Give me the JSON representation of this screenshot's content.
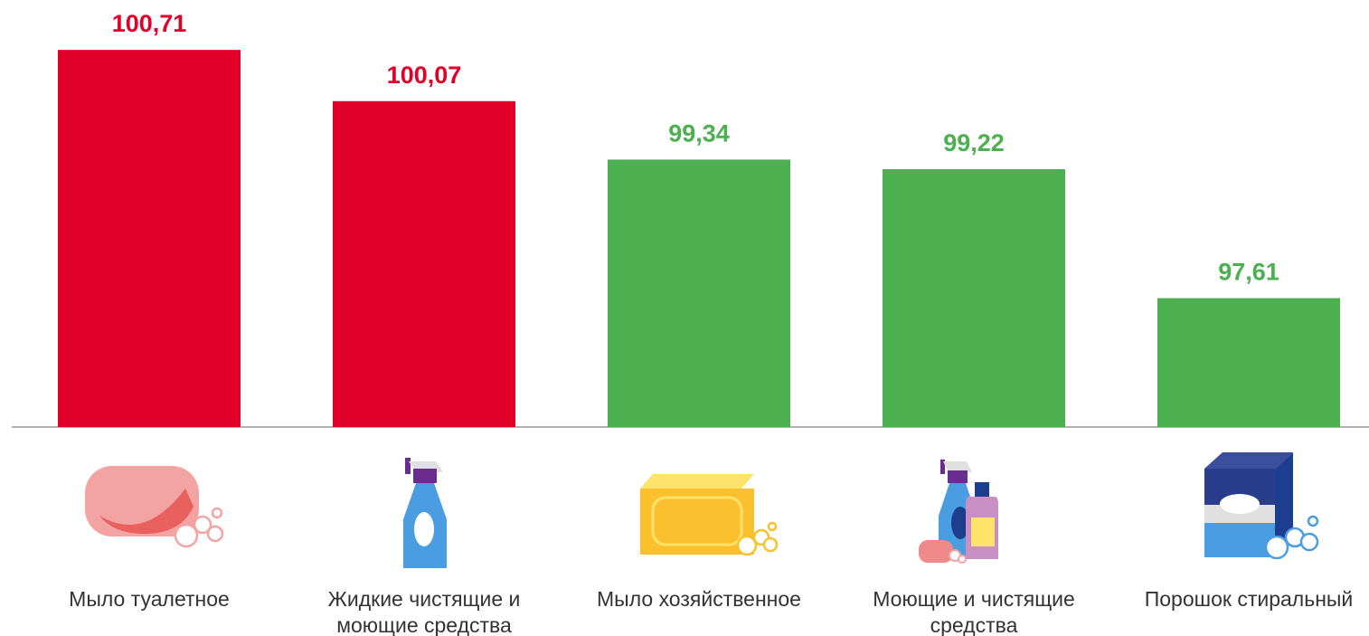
{
  "chart_data": {
    "type": "bar",
    "categories": [
      "Мыло туалетное",
      "Жидкие чистящие и моющие средства",
      "Мыло хозяйственное",
      "Моющие и чистящие средства",
      "Порошок стиральный"
    ],
    "values": [
      100.71,
      100.07,
      99.34,
      99.22,
      97.61
    ],
    "value_labels": [
      "100,71",
      "100,07",
      "99,34",
      "99,22",
      "97,61"
    ],
    "colors": [
      "#e0002a",
      "#e0002a",
      "#4caf50",
      "#4caf50",
      "#4caf50"
    ],
    "ylim": [
      96,
      101
    ],
    "grid": false
  }
}
